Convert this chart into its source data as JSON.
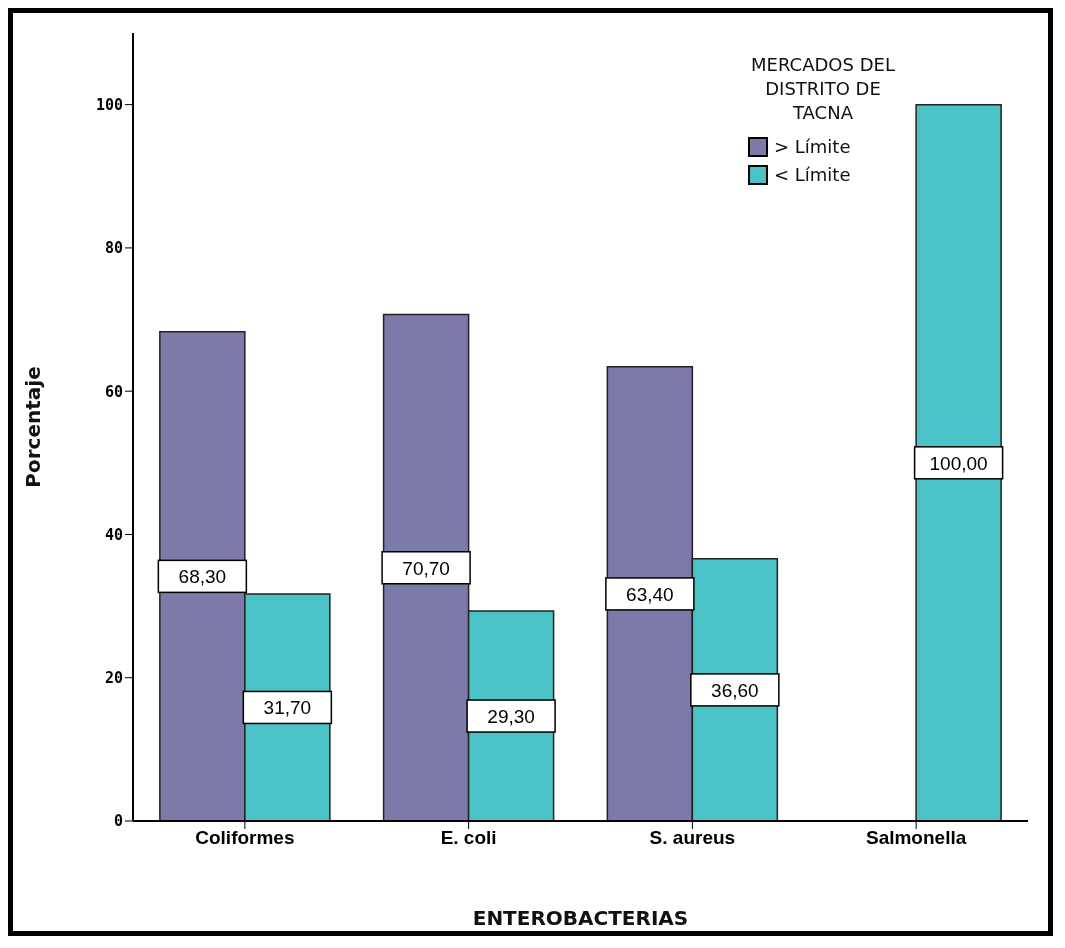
{
  "chart_data": {
    "type": "bar",
    "xlabel": "ENTEROBACTERIAS",
    "ylabel": "Porcentaje",
    "legend_title": "MERCADOS DEL DISTRITO DE TACNA",
    "categories": [
      "Coliformes",
      "E. coli",
      "S. aureus",
      "Salmonella"
    ],
    "series": [
      {
        "name": "> Límite",
        "color": "#7b7aa8",
        "values": [
          68.3,
          70.7,
          63.4,
          null
        ],
        "value_labels": [
          "68,30",
          "70,70",
          "63,40",
          null
        ]
      },
      {
        "name": "< Límite",
        "color": "#4bc3c6",
        "values": [
          31.7,
          29.3,
          36.6,
          100
        ],
        "value_labels": [
          "31,70",
          "29,30",
          "36,60",
          "100,00"
        ]
      }
    ],
    "ylim": [
      0,
      110
    ],
    "yticks": [
      0,
      20,
      40,
      60,
      80,
      100
    ],
    "legend": "top right"
  }
}
